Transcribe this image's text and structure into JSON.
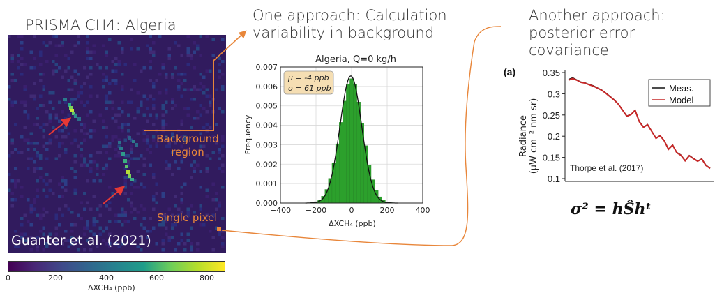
{
  "left_panel": {
    "title": "PRISMA CH4: Algeria",
    "background_label_line1": "Background",
    "background_label_line2": "region",
    "single_pixel_label": "Single pixel",
    "credit": "Guanter et al. (2021)",
    "colorbar": {
      "ticks": [
        "0",
        "200",
        "400",
        "600",
        "800"
      ],
      "label": "ΔXCH₄ (ppb)"
    }
  },
  "middle_panel": {
    "heading_line1": "One approach: Calculation",
    "heading_line2": "variability in background"
  },
  "right_panel": {
    "heading_line1": "Another approach:",
    "heading_line2": "posterior error covariance",
    "panel_letter": "(a)",
    "credit": "Thorpe et al. (2017)",
    "formula": "σ² = hŜhᵗ"
  },
  "colors": {
    "accent_orange": "#e8863a",
    "histogram_green": "#2ca02c",
    "map_background": "#311b5e",
    "model_red": "#c62828"
  },
  "chart_data": [
    {
      "type": "bar",
      "title": "Algeria, Q=0 kg/h",
      "xlabel": "ΔXCH₄ (ppb)",
      "ylabel": "Frequency",
      "xlim": [
        -400,
        400
      ],
      "ylim": [
        0,
        0.007
      ],
      "xticks": [
        "−400",
        "−200",
        "0",
        "200",
        "400"
      ],
      "yticks": [
        "0.000",
        "0.001",
        "0.002",
        "0.003",
        "0.004",
        "0.005",
        "0.006",
        "0.007"
      ],
      "grid": true,
      "legend_line1": "μ = -4 ppb",
      "legend_line2": "σ = 61 ppb",
      "legend_position": "top-left",
      "bins": [
        -240,
        -220,
        -200,
        -180,
        -160,
        -140,
        -120,
        -100,
        -80,
        -60,
        -40,
        -20,
        0,
        20,
        40,
        60,
        80,
        100,
        120,
        140,
        160,
        180,
        200,
        220,
        240
      ],
      "values": [
        1e-05,
        3e-05,
        7e-05,
        0.00016,
        0.00035,
        0.0007,
        0.00127,
        0.00205,
        0.00305,
        0.00415,
        0.00525,
        0.0061,
        0.0064,
        0.0061,
        0.0052,
        0.0041,
        0.00295,
        0.00195,
        0.0012,
        0.00065,
        0.00032,
        0.00014,
        6e-05,
        2e-05,
        1e-05
      ],
      "fit": {
        "mean": -4,
        "sigma": 61
      }
    },
    {
      "type": "line",
      "ylabel_line1": "Radiance",
      "ylabel_line2": "(μW cm⁻² nm sr)",
      "ylim": [
        0.1,
        0.35
      ],
      "yticks": [
        "0.35",
        "0.3",
        "0.25",
        "0.2",
        "0.15",
        "0.1"
      ],
      "legend_position": "top-right",
      "series": [
        {
          "name": "Meas.",
          "values": [
            0.334,
            0.338,
            0.333,
            0.328,
            0.326,
            0.322,
            0.319,
            0.314,
            0.309,
            0.302,
            0.294,
            0.286,
            0.276,
            0.262,
            0.248,
            0.252,
            0.262,
            0.235,
            0.222,
            0.228,
            0.212,
            0.196,
            0.202,
            0.19,
            0.17,
            0.18,
            0.162,
            0.156,
            0.143,
            0.155,
            0.148,
            0.142,
            0.147,
            0.132,
            0.125
          ]
        },
        {
          "name": "Model",
          "values": [
            0.332,
            0.336,
            0.332,
            0.327,
            0.325,
            0.321,
            0.318,
            0.313,
            0.308,
            0.301,
            0.293,
            0.285,
            0.275,
            0.261,
            0.247,
            0.251,
            0.261,
            0.234,
            0.221,
            0.227,
            0.211,
            0.195,
            0.201,
            0.189,
            0.169,
            0.179,
            0.161,
            0.155,
            0.142,
            0.154,
            0.147,
            0.141,
            0.146,
            0.131,
            0.124
          ]
        }
      ]
    }
  ]
}
